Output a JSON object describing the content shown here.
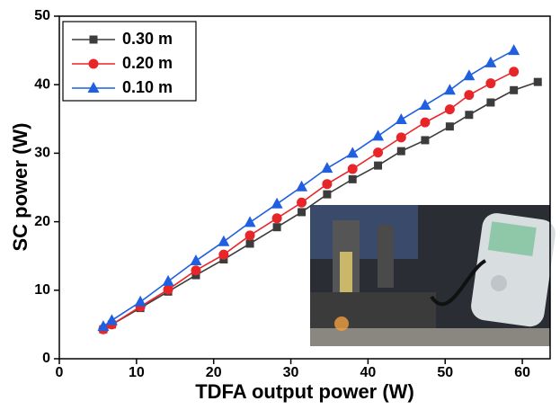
{
  "chart_data": {
    "type": "line",
    "x_label": "TDFA output power (W)",
    "y_label": "SC power (W)",
    "x": [
      5.7,
      6.8,
      10.5,
      14.1,
      17.7,
      21.3,
      24.7,
      28.2,
      31.4,
      34.7,
      38.0,
      41.3,
      44.3,
      47.4,
      50.6,
      53.1,
      55.9,
      58.9,
      62.0
    ],
    "series": [
      {
        "name": "0.30 m",
        "color": "#3c3c3c",
        "marker": "square",
        "values": [
          4.3,
          5.0,
          7.4,
          9.8,
          12.2,
          14.5,
          16.8,
          19.2,
          21.4,
          24.0,
          26.2,
          28.2,
          30.3,
          31.9,
          33.9,
          35.6,
          37.4,
          39.2,
          40.4
        ]
      },
      {
        "name": "0.20 m",
        "color": "#e8262a",
        "marker": "circle",
        "values": [
          4.3,
          5.0,
          7.6,
          10.1,
          12.9,
          15.2,
          18.0,
          20.5,
          22.8,
          25.5,
          27.7,
          30.1,
          32.3,
          34.5,
          36.4,
          38.5,
          40.2,
          41.9,
          null
        ]
      },
      {
        "name": "0.10 m",
        "color": "#1f5fe0",
        "marker": "triangle",
        "values": [
          4.7,
          5.6,
          8.3,
          11.3,
          14.3,
          17.1,
          19.9,
          22.6,
          25.1,
          27.8,
          30.0,
          32.5,
          34.9,
          37.0,
          39.2,
          41.3,
          43.2,
          45.0,
          null
        ]
      }
    ],
    "xlim": [
      0,
      63.6
    ],
    "xticks": [
      0,
      10,
      20,
      30,
      40,
      50,
      60
    ],
    "ylim": [
      0,
      50
    ],
    "yticks": [
      0,
      10,
      20,
      30,
      40,
      50
    ],
    "legend": "upper-left"
  }
}
